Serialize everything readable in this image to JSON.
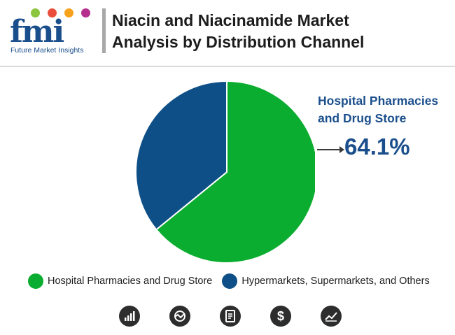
{
  "header": {
    "logo_text": "fmi",
    "logo_tagline": "Future Market Insights",
    "title_line1": "Niacin and Niacinamide Market",
    "title_line2": "Analysis by Distribution Channel"
  },
  "chart_data": {
    "type": "pie",
    "title": "Niacin and Niacinamide Market Analysis by Distribution Channel",
    "slices": [
      {
        "name": "Hospital Pharmacies and Drug Store",
        "value": 64.1,
        "color": "#0aad2f"
      },
      {
        "name": "Hypermarkets, Supermarkets, and Others",
        "value": 35.9,
        "color": "#0d4f86"
      }
    ],
    "legend_position": "bottom",
    "annotation": {
      "label_line1": "Hospital Pharmacies",
      "label_line2": "and Drug Store",
      "value_text": "64.1%"
    }
  },
  "footer_icons": [
    "bar-chart-icon",
    "analytics-icon",
    "report-icon",
    "dollar-icon",
    "trend-icon"
  ],
  "colors": {
    "brand_blue": "#1b4f8c",
    "green": "#0aad2f",
    "navy": "#0d4f86"
  }
}
